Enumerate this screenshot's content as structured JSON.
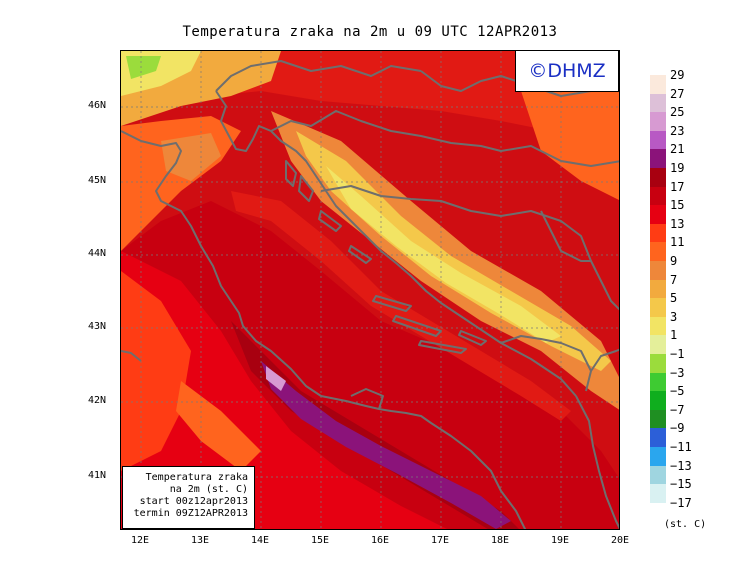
{
  "title": "Temperatura zraka na 2m u 09 UTC 12APR2013",
  "logo": "©DHMZ",
  "info_box": {
    "lines": [
      "Temperatura zraka",
      "na 2m (st. C)",
      "start 00z12apr2013",
      "termin 09Z12APR2013"
    ]
  },
  "map": {
    "lon_labels": [
      "12E",
      "13E",
      "14E",
      "15E",
      "16E",
      "17E",
      "18E",
      "19E",
      "20E"
    ],
    "lat_labels": [
      "46N",
      "45N",
      "44N",
      "43N",
      "42N",
      "41N"
    ]
  },
  "legend": {
    "labels": [
      "29",
      "27",
      "25",
      "23",
      "21",
      "19",
      "17",
      "15",
      "13",
      "11",
      "9",
      "7",
      "5",
      "3",
      "1",
      "−1",
      "−3",
      "−5",
      "−7",
      "−9",
      "−11",
      "−13",
      "−15",
      "−17"
    ],
    "colors": [
      "#fbe9dc",
      "#ddc0d8",
      "#d79ad2",
      "#b859c4",
      "#8b137a",
      "#a80010",
      "#c80010",
      "#e60012",
      "#ff3c14",
      "#ff641e",
      "#ee873a",
      "#f2aa3e",
      "#f4c84a",
      "#f2e464",
      "#e4ef9a",
      "#9bdc3c",
      "#3ecb32",
      "#0fae1e",
      "#1f8f22",
      "#2c5fd8",
      "#2aa6ee",
      "#9fd5e0",
      "#d9f1f2",
      "#ffffff"
    ],
    "units": "(st. C)"
  }
}
